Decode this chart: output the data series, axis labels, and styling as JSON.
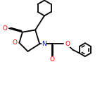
{
  "background": "#ffffff",
  "bond_color": "#000000",
  "O_color": "#ff0000",
  "N_color": "#0000ff",
  "bond_lw": 1.3,
  "figsize": [
    1.52,
    1.52
  ],
  "dpi": 100,
  "xlim": [
    0,
    10
  ],
  "ylim": [
    0,
    10
  ]
}
